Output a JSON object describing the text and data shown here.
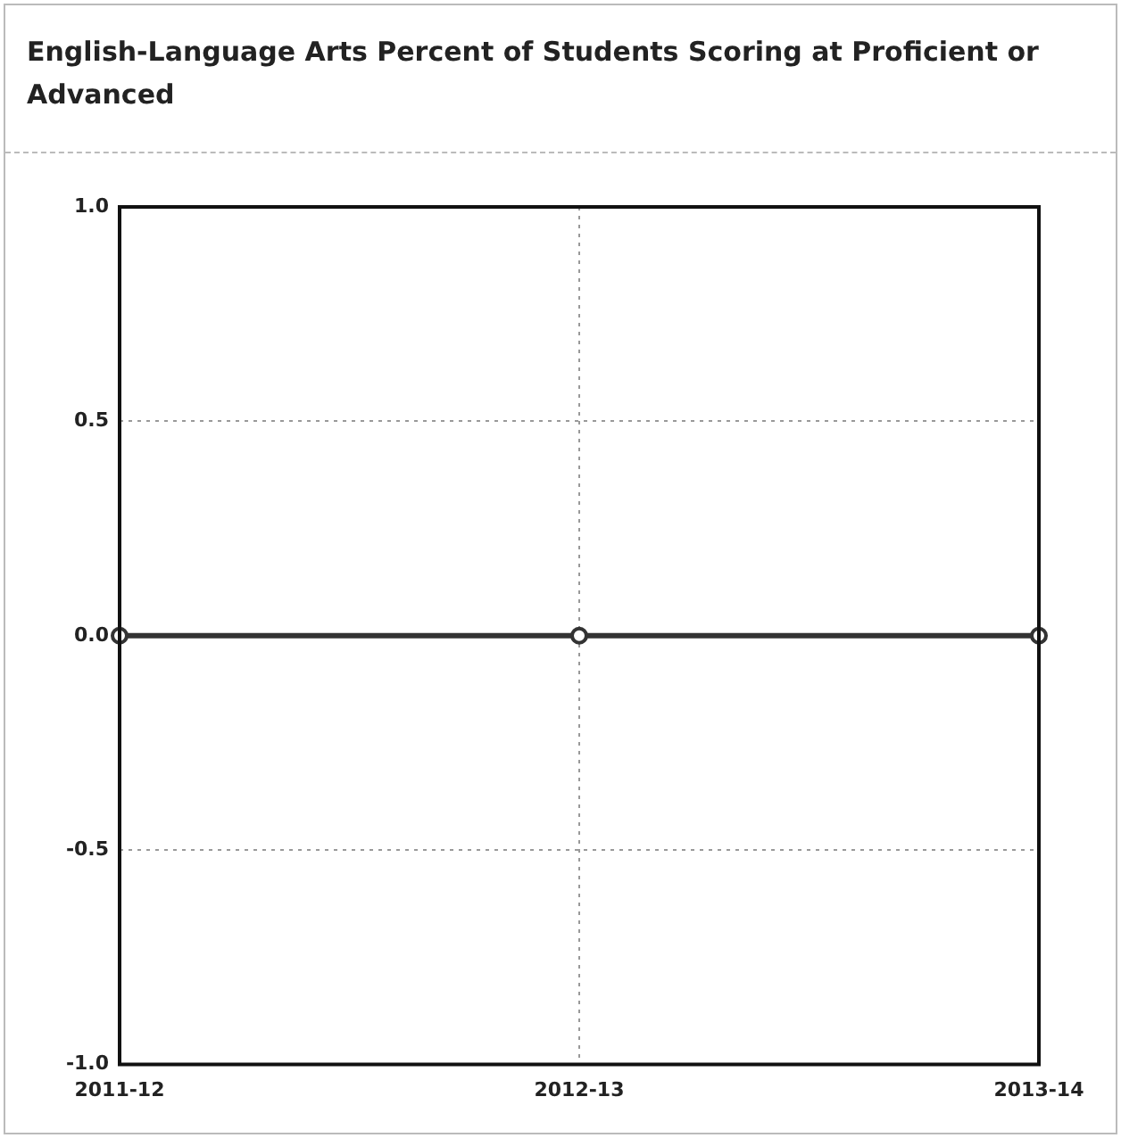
{
  "chart_data": {
    "type": "line",
    "title": "English-Language Arts Percent of Students Scoring at Proficient or Advanced",
    "categories": [
      "2011-12",
      "2012-13",
      "2013-14"
    ],
    "series": [
      {
        "color": "#333333",
        "values": [
          0,
          0,
          0
        ]
      }
    ],
    "ylim": [
      -1,
      1
    ],
    "yticks": [
      {
        "value": -1,
        "label": "-1.0"
      },
      {
        "value": -0.5,
        "label": "-0.5"
      },
      {
        "value": 0,
        "label": "0.0"
      },
      {
        "value": 0.5,
        "label": "0.5"
      },
      {
        "value": 1,
        "label": "1.0"
      }
    ],
    "grid": true,
    "legend": false,
    "marker": "circle",
    "line_style": "solid"
  }
}
